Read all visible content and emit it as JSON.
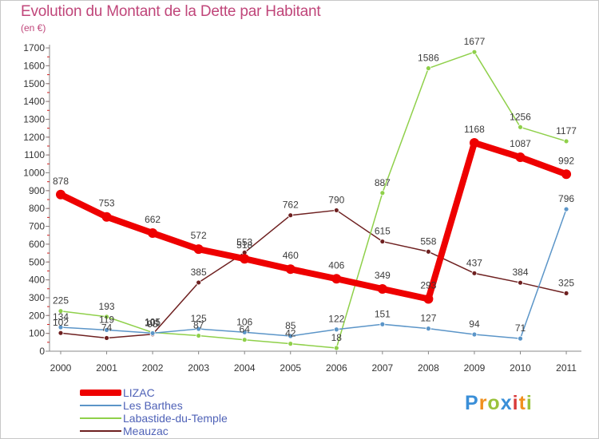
{
  "title": "Evolution du Montant de la Dette par Habitant",
  "subtitle": "(en €)",
  "brand": {
    "text": "Proxiti",
    "colors": [
      "#3a8fd8",
      "#f0901e",
      "#9ac23c",
      "#3a8fd8",
      "#d83a3a",
      "#f0901e",
      "#9ac23c"
    ]
  },
  "chart_data": {
    "type": "line",
    "title": "Evolution du Montant de la Dette par Habitant",
    "subtitle": "(en €)",
    "x": [
      "2000",
      "2001",
      "2002",
      "2003",
      "2004",
      "2005",
      "2006",
      "2007",
      "2008",
      "2009",
      "2010",
      "2011"
    ],
    "ylim": [
      0,
      1700
    ],
    "yticks": [
      0,
      100,
      200,
      300,
      400,
      500,
      600,
      700,
      800,
      900,
      1000,
      1100,
      1200,
      1300,
      1400,
      1500,
      1600,
      1700
    ],
    "grid": false,
    "legend_position": "bottom-left",
    "series": [
      {
        "name": "Meauzac",
        "color": "#6e2020",
        "width": 1.5,
        "marker": 3,
        "values": [
          102,
          74,
          95,
          385,
          553,
          762,
          790,
          615,
          558,
          437,
          384,
          325
        ]
      },
      {
        "name": "Labastide-du-Temple",
        "color": "#8fd04a",
        "width": 1.5,
        "marker": 3,
        "values": [
          225,
          193,
          105,
          87,
          64,
          42,
          18,
          887,
          1586,
          1677,
          1256,
          1177
        ]
      },
      {
        "name": "Les Barthes",
        "color": "#5b95c8",
        "width": 1.5,
        "marker": 3,
        "values": [
          134,
          119,
          101,
          125,
          106,
          85,
          122,
          151,
          127,
          94,
          71,
          796
        ]
      },
      {
        "name": "LIZAC",
        "color": "#ee0000",
        "width": 8,
        "marker": 6,
        "values": [
          878,
          753,
          662,
          572,
          518,
          460,
          406,
          349,
          293,
          1168,
          1087,
          992
        ]
      }
    ],
    "legend": [
      {
        "name": "LIZAC",
        "color": "#ee0000",
        "width": 8
      },
      {
        "name": "Les Barthes",
        "color": "#5b95c8",
        "width": 2
      },
      {
        "name": "Labastide-du-Temple",
        "color": "#8fd04a",
        "width": 2
      },
      {
        "name": "Meauzac",
        "color": "#6e2020",
        "width": 2
      }
    ]
  }
}
